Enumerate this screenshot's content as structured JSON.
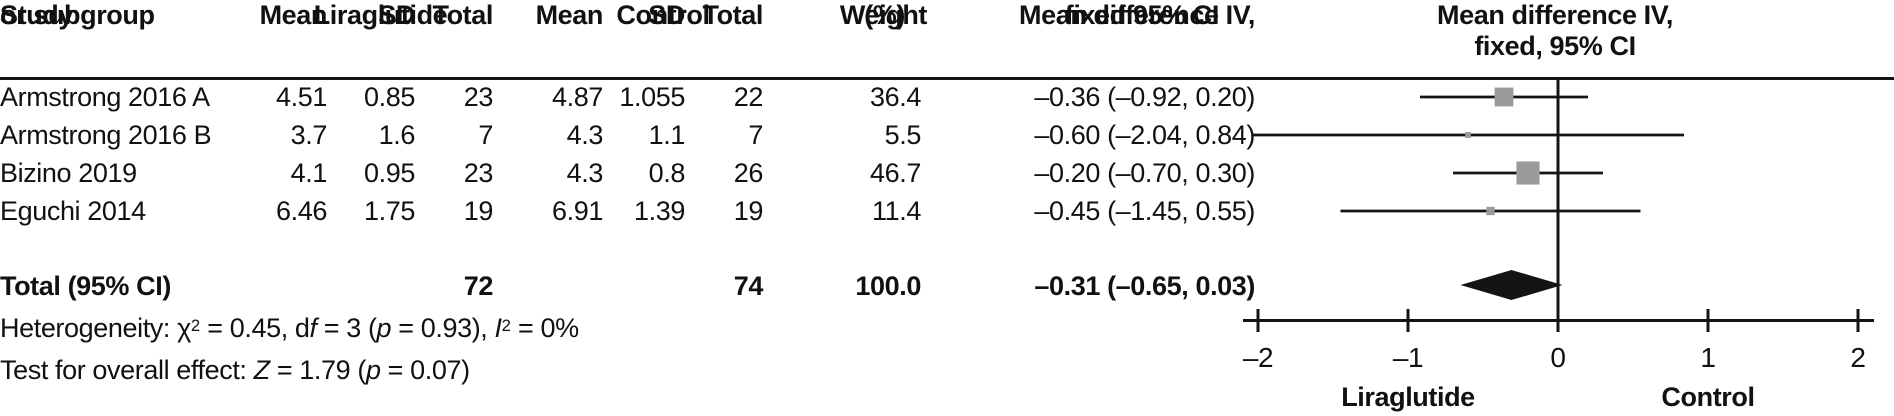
{
  "colors": {
    "marker_gray": "#9a9a9a",
    "ink": "#141414"
  },
  "table": {
    "header": {
      "study_line1": "Study",
      "study_line2": "or subgroup",
      "group_liraglutide": "Liraglutide",
      "group_control": "Control",
      "mean1": "Mean",
      "sd1": "SD",
      "total1": "Total",
      "mean2": "Mean",
      "sd2": "SD",
      "total2": "Total",
      "weight_line1": "Weight",
      "weight_line2": "(%)",
      "md_line1": "Mean difference IV,",
      "md_line2": "fixed 95% CI"
    },
    "rows": [
      {
        "study": "Armstrong 2016 A",
        "mean1": "4.51",
        "sd1": "0.85",
        "total1": "23",
        "mean2": "4.87",
        "sd2": "1.055",
        "total2": "22",
        "weight": "36.4",
        "md": "–0.36 (–0.92, 0.20)"
      },
      {
        "study": "Armstrong 2016 B",
        "mean1": "3.7",
        "sd1": "1.6",
        "total1": "7",
        "mean2": "4.3",
        "sd2": "1.1",
        "total2": "7",
        "weight": "5.5",
        "md": "–0.60 (–2.04, 0.84)"
      },
      {
        "study": "Bizino 2019",
        "mean1": "4.1",
        "sd1": "0.95",
        "total1": "23",
        "mean2": "4.3",
        "sd2": "0.8",
        "total2": "26",
        "weight": "46.7",
        "md": "–0.20 (–0.70, 0.30)"
      },
      {
        "study": "Eguchi 2014",
        "mean1": "6.46",
        "sd1": "1.75",
        "total1": "19",
        "mean2": "6.91",
        "sd2": "1.39",
        "total2": "19",
        "weight": "11.4",
        "md": "–0.45 (–1.45, 0.55)"
      }
    ],
    "total_row": {
      "label": "Total (95% CI)",
      "total1": "72",
      "total2": "74",
      "weight": "100.0",
      "md": "–0.31 (–0.65, 0.03)"
    }
  },
  "stats": {
    "het": {
      "prefix": "Heterogeneity: χ",
      "sup1": "2",
      "mid1": " = 0.45, d",
      "f": "f",
      "mid2": " = 3 (",
      "p": "p",
      "mid3": " = 0.93), ",
      "i": "I",
      "sup2": "2",
      "suffix": " = 0%"
    },
    "test": {
      "prefix": "Test for overall effect: ",
      "z": "Z",
      "mid": " = 1.79 (",
      "p": "p",
      "suffix": " = 0.07)"
    }
  },
  "plot": {
    "header_line1": "Mean difference IV,",
    "header_line2": "fixed, 95% CI",
    "tick_labels": [
      "–2",
      "–1",
      "0",
      "1",
      "2"
    ],
    "axis_label_left": "Liraglutide",
    "axis_label_right": "Control"
  },
  "chart_data": {
    "type": "scatter",
    "subtype": "forest-plot",
    "title": "Mean difference IV, fixed, 95% CI",
    "xlim": [
      -2,
      2
    ],
    "x_ticks": [
      -2,
      -1,
      0,
      1,
      2
    ],
    "favors_left": "Liraglutide",
    "favors_right": "Control",
    "studies": [
      {
        "label": "Armstrong 2016 A",
        "liraglutide": {
          "mean": 4.51,
          "sd": 0.85,
          "total": 23
        },
        "control": {
          "mean": 4.87,
          "sd": 1.055,
          "total": 22
        },
        "weight_pct": 36.4,
        "md": -0.36,
        "ci_low": -0.92,
        "ci_high": 0.2
      },
      {
        "label": "Armstrong 2016 B",
        "liraglutide": {
          "mean": 3.7,
          "sd": 1.6,
          "total": 7
        },
        "control": {
          "mean": 4.3,
          "sd": 1.1,
          "total": 7
        },
        "weight_pct": 5.5,
        "md": -0.6,
        "ci_low": -2.04,
        "ci_high": 0.84
      },
      {
        "label": "Bizino 2019",
        "liraglutide": {
          "mean": 4.1,
          "sd": 0.95,
          "total": 23
        },
        "control": {
          "mean": 4.3,
          "sd": 0.8,
          "total": 26
        },
        "weight_pct": 46.7,
        "md": -0.2,
        "ci_low": -0.7,
        "ci_high": 0.3
      },
      {
        "label": "Eguchi 2014",
        "liraglutide": {
          "mean": 6.46,
          "sd": 1.75,
          "total": 19
        },
        "control": {
          "mean": 6.91,
          "sd": 1.39,
          "total": 19
        },
        "weight_pct": 11.4,
        "md": -0.45,
        "ci_low": -1.45,
        "ci_high": 0.55
      }
    ],
    "pooled": {
      "label": "Total (95% CI)",
      "liraglutide_total": 72,
      "control_total": 74,
      "weight_pct": 100.0,
      "md": -0.31,
      "ci_low": -0.65,
      "ci_high": 0.03
    },
    "heterogeneity": {
      "chi2": 0.45,
      "df": 3,
      "p": 0.93,
      "i2_pct": 0
    },
    "overall_effect": {
      "z": 1.79,
      "p": 0.07
    }
  }
}
